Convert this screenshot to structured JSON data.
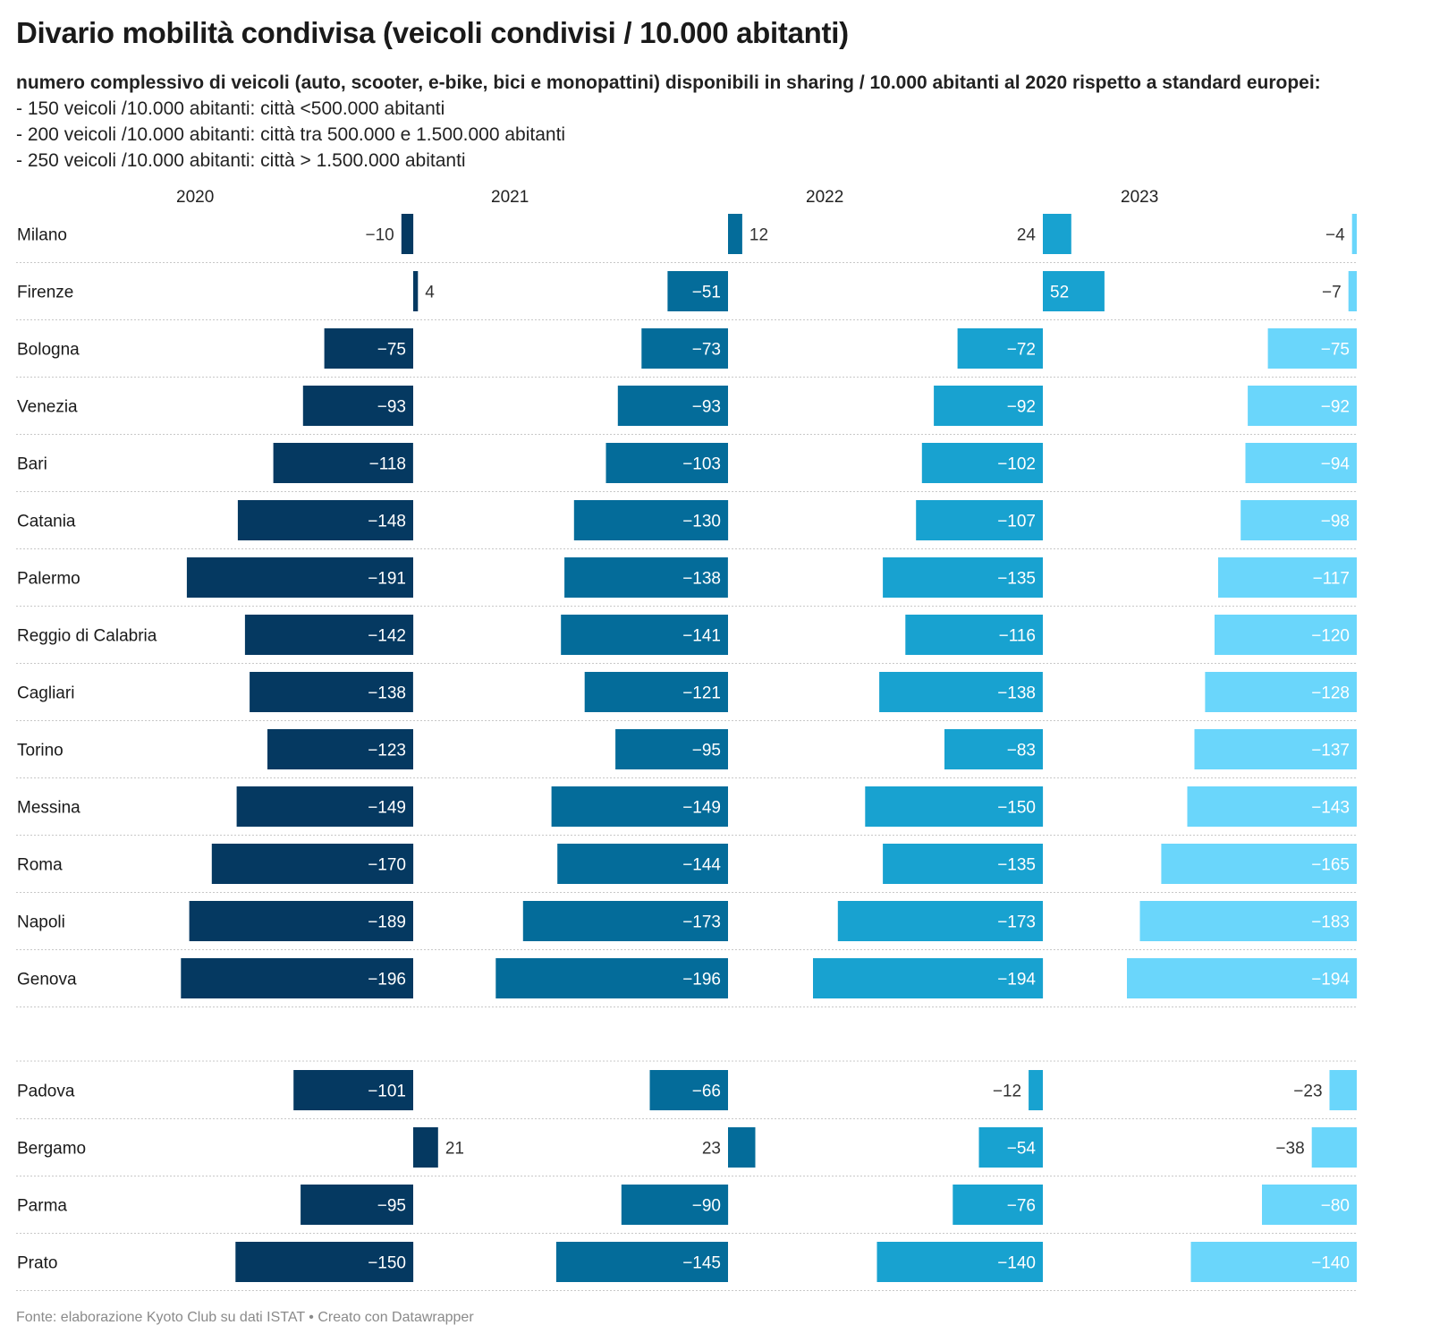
{
  "title": "Divario mobilità condivisa (veicoli condivisi / 10.000 abitanti)",
  "subtitle": {
    "bold": "numero complessivo di veicoli (auto, scooter, e-bike, bici e monopattini) disponibili in sharing / 10.000 abitanti al 2020 rispetto a standard europei:",
    "lines": [
      "- 150 veicoli /10.000 abitanti: città <500.000 abitanti",
      "- 200 veicoli /10.000 abitanti: città tra 500.000 e 1.500.000 abitanti",
      "- 250 veicoli /10.000 abitanti: città > 1.500.000 abitanti"
    ]
  },
  "footer": "Fonte: elaborazione Kyoto Club su dati ISTAT • Creato con Datawrapper",
  "colors": {
    "2020": "#053961",
    "2021": "#046c9a",
    "2022": "#18a2d0",
    "2023": "#6ad6fb",
    "label_inside": "#ffffff",
    "label_outside": "#333333",
    "separator": "#c8c8c8"
  },
  "chart_data": {
    "type": "bar",
    "orientation": "horizontal",
    "layout": "small-multiples",
    "series_names": [
      "2020",
      "2021",
      "2022",
      "2023"
    ],
    "groups": [
      {
        "cities": [
          "Milano",
          "Firenze",
          "Bologna",
          "Venezia",
          "Bari",
          "Catania",
          "Palermo",
          "Reggio di Calabria",
          "Cagliari",
          "Torino",
          "Messina",
          "Roma",
          "Napoli",
          "Genova"
        ],
        "values": {
          "2020": [
            -10,
            4,
            -75,
            -93,
            -118,
            -148,
            -191,
            -142,
            -138,
            -123,
            -149,
            -170,
            -189,
            -196
          ],
          "2021": [
            12,
            -51,
            -73,
            -93,
            -103,
            -130,
            -138,
            -141,
            -121,
            -95,
            -149,
            -144,
            -173,
            -196
          ],
          "2022": [
            24,
            52,
            -72,
            -92,
            -102,
            -107,
            -135,
            -116,
            -138,
            -83,
            -150,
            -135,
            -173,
            -194
          ],
          "2023": [
            -4,
            -7,
            -75,
            -92,
            -94,
            -98,
            -117,
            -120,
            -128,
            -137,
            -143,
            -165,
            -183,
            -194
          ]
        }
      },
      {
        "cities": [
          "Padova",
          "Bergamo",
          "Parma",
          "Prato"
        ],
        "values": {
          "2020": [
            -101,
            21,
            -95,
            -150
          ],
          "2021": [
            -66,
            23,
            -90,
            -145
          ],
          "2022": [
            -12,
            -54,
            -76,
            -140
          ],
          "2023": [
            -23,
            -38,
            -80,
            -140
          ]
        }
      }
    ],
    "value_format": "minus sign −"
  }
}
